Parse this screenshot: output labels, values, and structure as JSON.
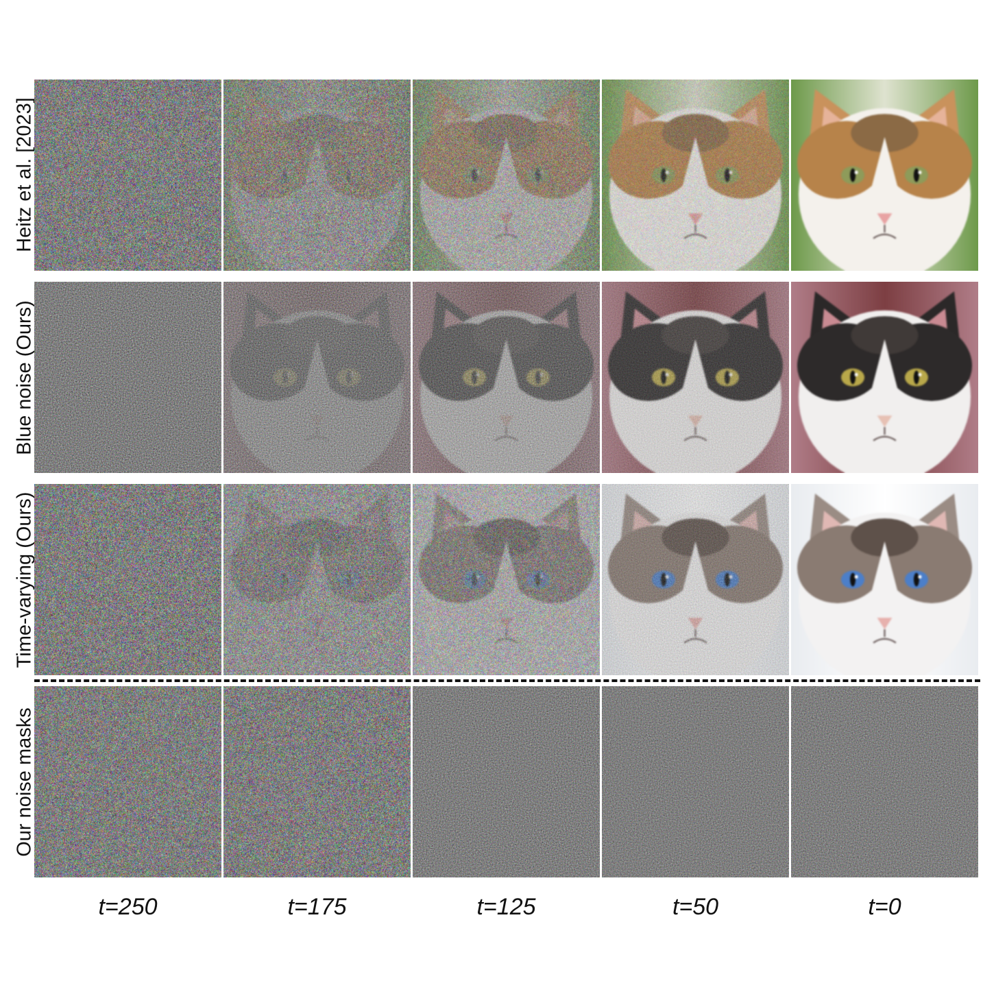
{
  "figure": {
    "rows": [
      {
        "label": "Heitz et al. [2023]",
        "noise": "white",
        "cat": "calico",
        "cells": [
          {
            "t": 250
          },
          {
            "t": 175
          },
          {
            "t": 125
          },
          {
            "t": 50
          },
          {
            "t": 0
          }
        ]
      },
      {
        "label": "Blue noise (Ours)",
        "noise": "blue",
        "cat": "black-white",
        "cells": [
          {
            "t": 250
          },
          {
            "t": 175
          },
          {
            "t": 125
          },
          {
            "t": 50
          },
          {
            "t": 0
          }
        ]
      },
      {
        "label": "Time-varying (Ours)",
        "noise": "time-varying",
        "cat": "tabby-white",
        "cells": [
          {
            "t": 250
          },
          {
            "t": 175
          },
          {
            "t": 125
          },
          {
            "t": 50
          },
          {
            "t": 0
          }
        ]
      },
      {
        "label": "Our noise masks",
        "noise": "mask",
        "cat": "none",
        "cells": [
          {
            "t": 250
          },
          {
            "t": 175
          },
          {
            "t": 125
          },
          {
            "t": 50
          },
          {
            "t": 0
          }
        ]
      }
    ],
    "columns": [
      "t=250",
      "t=175",
      "t=125",
      "t=50",
      "t=0"
    ],
    "divider_style": "dashed",
    "colors": {
      "background": "#ffffff",
      "text": "#111111",
      "noise_gray": "#7f7f7f"
    }
  }
}
